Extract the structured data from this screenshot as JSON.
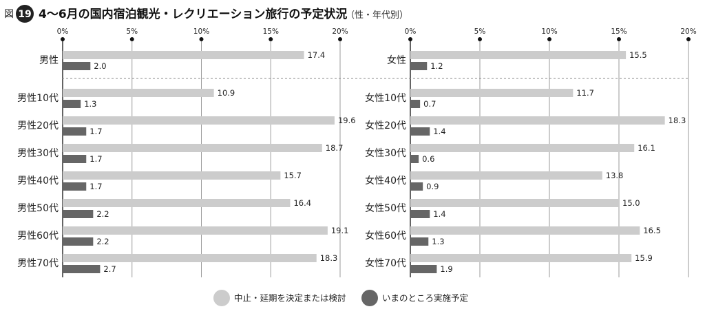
{
  "header": {
    "prefix": "図",
    "number": "19",
    "title": "4～6月の国内宿泊観光・レクリエーション旅行の予定状況",
    "subtitle": "（性・年代別）"
  },
  "chart_data": [
    {
      "type": "bar",
      "orientation": "horizontal",
      "categories": [
        "男性",
        "男性10代",
        "男性20代",
        "男性30代",
        "男性40代",
        "男性50代",
        "男性60代",
        "男性70代"
      ],
      "series": [
        {
          "name": "中止・延期を決定または検討",
          "values": [
            17.4,
            10.9,
            19.6,
            18.7,
            15.7,
            16.4,
            19.1,
            18.3
          ]
        },
        {
          "name": "いまのところ実施予定",
          "values": [
            2.0,
            1.3,
            1.7,
            1.7,
            1.7,
            2.2,
            2.2,
            2.7
          ]
        }
      ],
      "value_labels": [
        [
          "17.4",
          "10.9",
          "19.6",
          "18.7",
          "15.7",
          "16.4",
          "19.1",
          "18.3"
        ],
        [
          "2.0",
          "1.3",
          "1.7",
          "1.7",
          "1.7",
          "2.2",
          "2.2",
          "2.7"
        ]
      ],
      "xlim": [
        0,
        20
      ],
      "ticks": [
        "0%",
        "5%",
        "10%",
        "15%",
        "20%"
      ],
      "grid": true
    },
    {
      "type": "bar",
      "orientation": "horizontal",
      "categories": [
        "女性",
        "女性10代",
        "女性20代",
        "女性30代",
        "女性40代",
        "女性50代",
        "女性60代",
        "女性70代"
      ],
      "series": [
        {
          "name": "中止・延期を決定または検討",
          "values": [
            15.5,
            11.7,
            18.3,
            16.1,
            13.8,
            15.0,
            16.5,
            15.9
          ]
        },
        {
          "name": "いまのところ実施予定",
          "values": [
            1.2,
            0.7,
            1.4,
            0.6,
            0.9,
            1.4,
            1.3,
            1.9
          ]
        }
      ],
      "value_labels": [
        [
          "15.5",
          "11.7",
          "18.3",
          "16.1",
          "13.8",
          "15.0",
          "16.5",
          "15.9"
        ],
        [
          "1.2",
          "0.7",
          "1.4",
          "0.6",
          "0.9",
          "1.4",
          "1.3",
          "1.9"
        ]
      ],
      "xlim": [
        0,
        20
      ],
      "ticks": [
        "0%",
        "5%",
        "10%",
        "15%",
        "20%"
      ],
      "grid": true
    }
  ],
  "legend": {
    "placement": "bottom-center",
    "items": [
      {
        "label": "中止・延期を決定または検討",
        "color": "#cccccc"
      },
      {
        "label": "いまのところ実施予定",
        "color": "#666666"
      }
    ]
  },
  "colors": {
    "series1": "#cccccc",
    "series2": "#666666",
    "badge": "#222222",
    "gridline": "#9a9a9a",
    "separator": "#888888"
  }
}
